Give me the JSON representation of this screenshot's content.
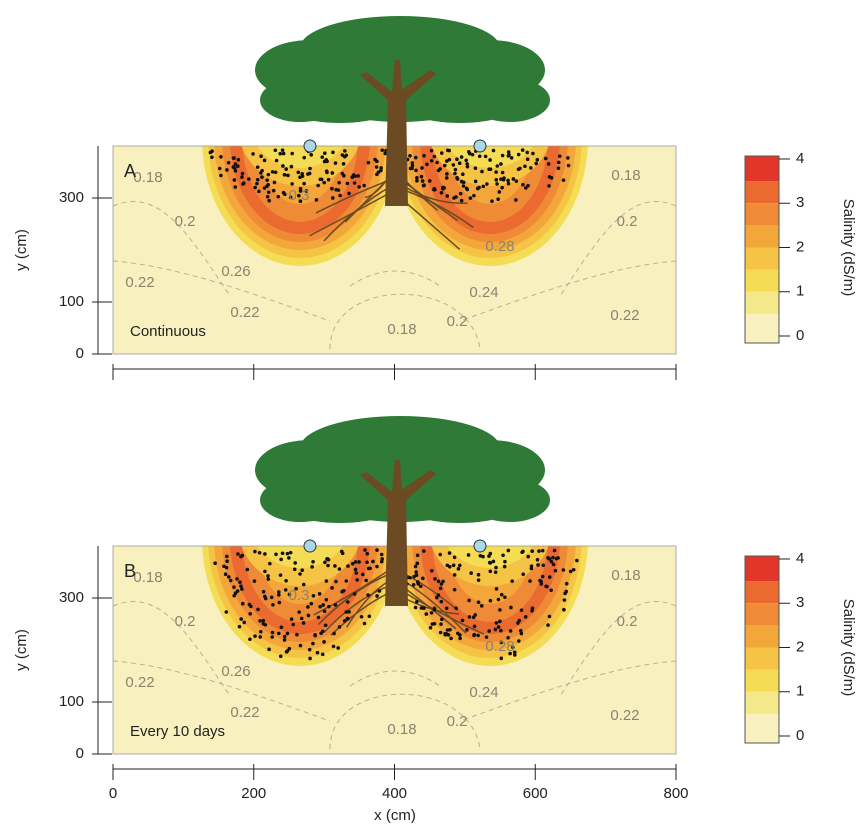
{
  "chart_data": [
    {
      "type": "contour",
      "panel_label": "A",
      "annotation": "Continuous",
      "contour_labels": [
        "0.18",
        "0.2",
        "0.3",
        "0.26",
        "0.22",
        "0.22",
        "0.18",
        "0.2",
        "0.24",
        "0.28",
        "0.2",
        "0.18",
        "0.22"
      ],
      "ylabel": "y (cm)",
      "xlim": [
        0,
        800
      ],
      "ylim": [
        0,
        400
      ],
      "yticks": [
        0,
        100,
        300
      ],
      "colorbar": {
        "label": "Salinity (dS/m)",
        "lim": [
          0,
          4
        ],
        "ticks": [
          0,
          1,
          2,
          3,
          4
        ],
        "colors": [
          "#f8f1bf",
          "#f4e98a",
          "#f5dc55",
          "#f6c445",
          "#f3a73b",
          "#ef8a36",
          "#ea6a30",
          "#e2362b"
        ]
      }
    },
    {
      "type": "contour",
      "panel_label": "B",
      "annotation": "Every 10 days",
      "contour_labels": [
        "0.18",
        "0.2",
        "0.3",
        "0.26",
        "0.22",
        "0.22",
        "0.18",
        "0.2",
        "0.24",
        "0.28",
        "0.2",
        "0.18",
        "0.22"
      ],
      "ylabel": "y (cm)",
      "xlabel": "x (cm)",
      "xlim": [
        0,
        800
      ],
      "ylim": [
        0,
        400
      ],
      "xticks": [
        0,
        200,
        400,
        600,
        800
      ],
      "yticks": [
        0,
        100,
        300
      ],
      "colorbar": {
        "label": "Salinity (dS/m)",
        "lim": [
          0,
          4
        ],
        "ticks": [
          0,
          1,
          2,
          3,
          4
        ],
        "colors": [
          "#f8f1bf",
          "#f4e98a",
          "#f5dc55",
          "#f6c445",
          "#f3a73b",
          "#ef8a36",
          "#ea6a30",
          "#e2362b"
        ]
      }
    }
  ]
}
